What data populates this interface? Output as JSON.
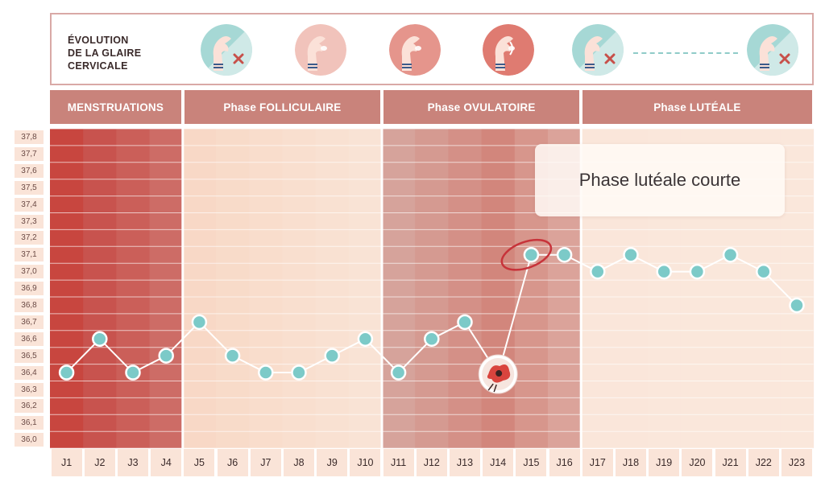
{
  "mucus": {
    "title": "ÉVOLUTION\nDE LA GLAIRE\nCERVICALE",
    "icons": [
      {
        "name": "dry-mucus-icon",
        "state": "dry"
      },
      {
        "name": "creamy-mucus-icon",
        "state": "creamy"
      },
      {
        "name": "wet-mucus-icon",
        "state": "wet"
      },
      {
        "name": "egg-white-mucus-icon",
        "state": "stretchy"
      },
      {
        "name": "dry-mucus-icon",
        "state": "dry"
      },
      {
        "name": "dry-mucus-icon",
        "state": "dry"
      }
    ]
  },
  "phases": [
    {
      "label": "MENSTRUATIONS",
      "from_day": 1,
      "to_day": 4
    },
    {
      "label": "Phase FOLLICULAIRE",
      "from_day": 5,
      "to_day": 10
    },
    {
      "label": "Phase OVULATOIRE",
      "from_day": 11,
      "to_day": 16
    },
    {
      "label": "Phase LUTÉALE",
      "from_day": 17,
      "to_day": 23
    }
  ],
  "callout": "Phase lutéale courte",
  "colors": {
    "phase_header": "#c9837b",
    "menstruation_band": "#c8534e",
    "follicular_band": "#f8dccb",
    "ovulatory_band": "#d9a097",
    "luteal_band": "#fae7db",
    "line": "#ffffff",
    "point": "#7ccac8",
    "ovulation_marker": "#d9443e"
  },
  "chart_data": {
    "type": "line",
    "title": "",
    "xlabel": "",
    "ylabel": "",
    "categories": [
      "J1",
      "J2",
      "J3",
      "J4",
      "J5",
      "J6",
      "J7",
      "J8",
      "J9",
      "J10",
      "J11",
      "J12",
      "J13",
      "J14",
      "J15",
      "J16",
      "J17",
      "J18",
      "J19",
      "J20",
      "J21",
      "J22",
      "J23"
    ],
    "values": [
      36.4,
      36.6,
      36.4,
      36.5,
      36.7,
      36.5,
      36.4,
      36.4,
      36.5,
      36.6,
      36.4,
      36.6,
      36.7,
      36.4,
      37.1,
      37.1,
      37.0,
      37.1,
      37.0,
      37.0,
      37.1,
      37.0,
      36.8
    ],
    "yticks": [
      "36,0",
      "36,1",
      "36,2",
      "36,3",
      "36,4",
      "36,5",
      "36,6",
      "36,7",
      "36,8",
      "36,9",
      "37,0",
      "37,1",
      "37,2",
      "37,3",
      "37,4",
      "37,5",
      "37,6",
      "37,7",
      "37,8"
    ],
    "ylim": [
      36.0,
      37.8
    ],
    "grid": true,
    "ovulation_day": "J14",
    "highlighted_day": "J15"
  }
}
